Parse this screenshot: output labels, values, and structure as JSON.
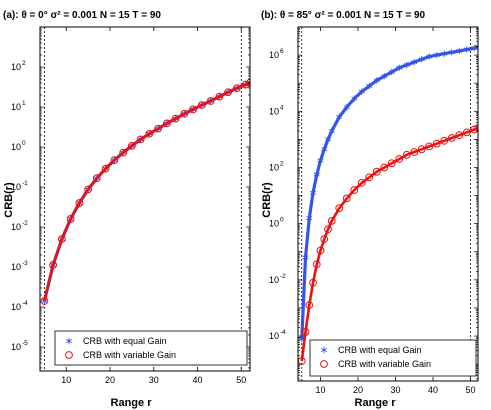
{
  "chart_data": [
    {
      "type": "line",
      "title": "(a):  θ = 0°    σ² = 0.001    N = 15    T = 90",
      "xlabel": "Range  r",
      "ylabel": "CRB(r)",
      "xscale": "linear",
      "yscale": "log",
      "xlim": [
        4,
        52
      ],
      "ylim_exp": [
        -5.6,
        3.0
      ],
      "xticks": [
        10,
        20,
        30,
        40,
        50
      ],
      "yticks_exp": [
        -5,
        -4,
        -3,
        -2,
        -1,
        0,
        1,
        2
      ],
      "tick_base": "10",
      "vlines": [
        5,
        50
      ],
      "grid": false,
      "legend": "bottom",
      "colors": {
        "equal": "#3355ee",
        "variable": "#ee1111"
      },
      "series": [
        {
          "name": "CRB with equal Gain",
          "style": "star-line",
          "x": [
            5,
            7,
            9,
            11,
            13,
            15,
            17,
            19,
            21,
            23,
            25,
            27,
            29,
            31,
            33,
            35,
            37,
            39,
            41,
            43,
            45,
            47,
            49,
            51,
            52
          ],
          "y": [
            0.000141,
            0.00112,
            0.00501,
            0.0159,
            0.0398,
            0.0871,
            0.166,
            0.288,
            0.468,
            0.724,
            1.07,
            1.55,
            2.14,
            2.88,
            3.89,
            5.13,
            6.76,
            8.71,
            11.2,
            14.1,
            18.2,
            23.4,
            29.5,
            36.3,
            40.7
          ]
        },
        {
          "name": "CRB with variable Gain",
          "style": "circle-line",
          "x": [
            5,
            7,
            9,
            11,
            13,
            15,
            17,
            19,
            21,
            23,
            25,
            27,
            29,
            31,
            33,
            35,
            37,
            39,
            41,
            43,
            45,
            47,
            49,
            51,
            52
          ],
          "y": [
            0.000141,
            0.00112,
            0.00501,
            0.0159,
            0.0398,
            0.0871,
            0.166,
            0.288,
            0.468,
            0.724,
            1.07,
            1.55,
            2.14,
            2.88,
            3.89,
            5.13,
            6.76,
            8.71,
            11.2,
            14.1,
            18.2,
            23.4,
            29.5,
            36.3,
            40.7
          ]
        }
      ]
    },
    {
      "type": "line",
      "title": "(b):  θ = 85°    σ² = 0.001    N = 15    T = 90",
      "xlabel": "Range  r",
      "ylabel": "CRB(r)",
      "xscale": "linear",
      "yscale": "log",
      "xlim": [
        4,
        52
      ],
      "ylim_exp": [
        -5.6,
        7.0
      ],
      "xticks": [
        10,
        20,
        30,
        40,
        50
      ],
      "yticks_exp": [
        -4,
        -2,
        0,
        2,
        4,
        6
      ],
      "tick_base": "10",
      "vlines": [
        5,
        50
      ],
      "grid": false,
      "legend": "bottom",
      "colors": {
        "equal": "#3355ee",
        "variable": "#ee1111"
      },
      "series": [
        {
          "name": "CRB with equal Gain",
          "style": "star-line",
          "x": [
            5,
            6,
            7,
            8,
            9,
            10,
            11,
            12,
            13,
            15,
            17,
            19,
            21,
            23,
            25,
            27,
            29,
            31,
            33,
            35,
            37,
            39,
            41,
            43,
            45,
            47,
            49,
            51,
            52
          ],
          "y": [
            7.9e-05,
            0.063,
            1.58,
            12.6,
            56,
            178,
            447,
            1000,
            1995,
            6310,
            14125,
            28184,
            50119,
            79433,
            125893,
            177828,
            251189,
            354813,
            446684,
            562341,
            707946,
            891251,
            1000000,
            1122018,
            1258925,
            1412538,
            1584893,
            1778279,
            1995262
          ]
        },
        {
          "name": "CRB with variable Gain",
          "style": "circle-line",
          "x": [
            5,
            6,
            7,
            8,
            9,
            10,
            11,
            12,
            13,
            15,
            17,
            19,
            21,
            23,
            25,
            27,
            29,
            31,
            33,
            35,
            37,
            39,
            41,
            43,
            45,
            47,
            49,
            51,
            52
          ],
          "y": [
            1.3e-05,
            0.000141,
            0.00126,
            0.0079,
            0.0355,
            0.112,
            0.282,
            0.631,
            1.26,
            3.55,
            7.94,
            15.8,
            28.2,
            44.7,
            70.8,
            100,
            141,
            200,
            282,
            355,
            447,
            562,
            708,
            891,
            1122,
            1413,
            1778,
            2239,
            2512
          ]
        }
      ]
    }
  ]
}
